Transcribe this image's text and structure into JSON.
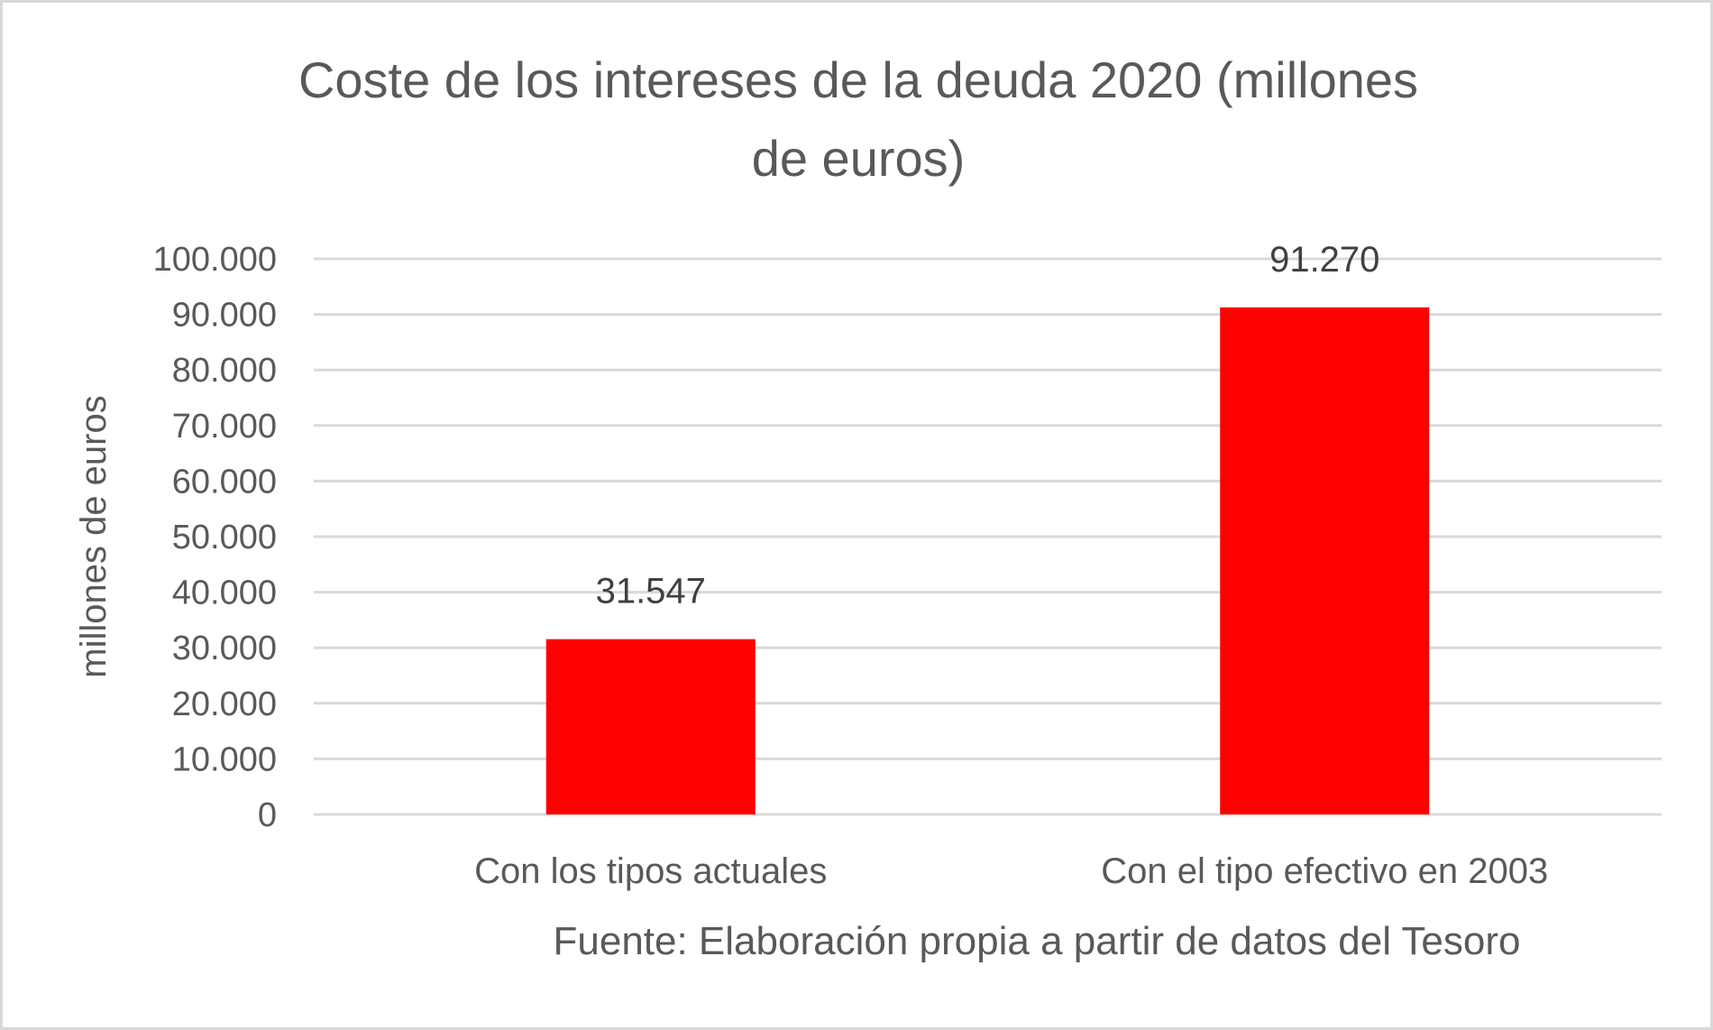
{
  "chart_data": {
    "type": "bar",
    "title_lines": [
      "Coste de los intereses de la deuda 2020 (millones",
      "de euros)"
    ],
    "categories": [
      "Con los tipos actuales",
      "Con el tipo efectivo en 2003"
    ],
    "values": [
      31547,
      91270
    ],
    "data_labels": [
      "31.547",
      "91.270"
    ],
    "ylabel": "millones de euros",
    "xlabel": "Fuente: Elaboración propia a partir de datos del Tesoro",
    "ylim": [
      0,
      100000
    ],
    "yticks": [
      0,
      10000,
      20000,
      30000,
      40000,
      50000,
      60000,
      70000,
      80000,
      90000,
      100000
    ],
    "ytick_labels": [
      "0",
      "10.000",
      "20.000",
      "30.000",
      "40.000",
      "50.000",
      "60.000",
      "70.000",
      "80.000",
      "90.000",
      "100.000"
    ],
    "grid": true,
    "bar_color": "#ff0000",
    "grid_color": "#d9d9d9"
  }
}
